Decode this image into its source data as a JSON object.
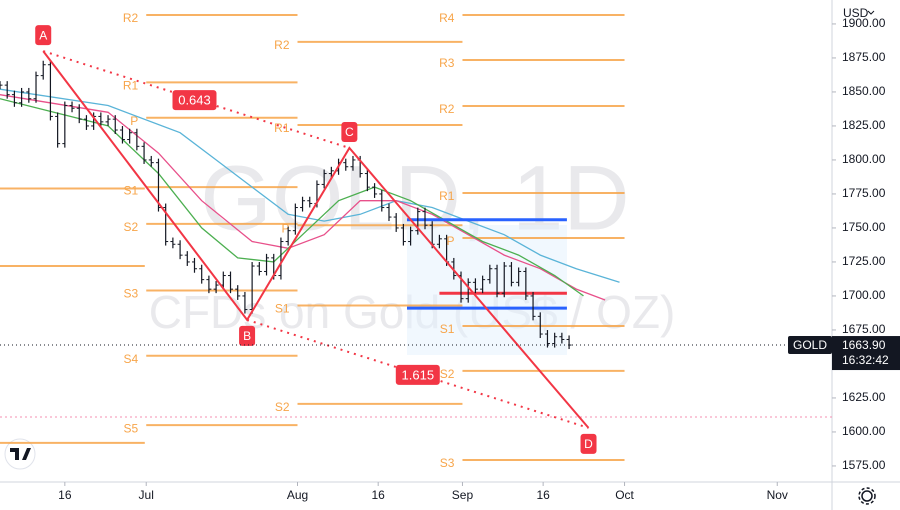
{
  "chart_data": {
    "type": "ohlc",
    "title": "GOLD, 1D",
    "subtitle": "CFDs on Gold (US$ / OZ)",
    "currency": "USD",
    "xlim": [
      0,
      115.5
    ],
    "xticks": [
      {
        "value": 9,
        "label": "16"
      },
      {
        "value": 20.3,
        "label": "Jul"
      },
      {
        "value": 41.3,
        "label": "Aug"
      },
      {
        "value": 52.5,
        "label": "16"
      },
      {
        "value": 64.2,
        "label": "Sep"
      },
      {
        "value": 75.4,
        "label": "16"
      },
      {
        "value": 86.7,
        "label": "Oct"
      },
      {
        "value": 107.9,
        "label": "Nov"
      }
    ],
    "ylim": [
      1563.2,
      1917.6
    ],
    "yticks": [
      {
        "value": 1575,
        "label": "1575.00"
      },
      {
        "value": 1600,
        "label": "1600.00"
      },
      {
        "value": 1625,
        "label": "1625.00"
      },
      {
        "value": 1650,
        "label": "1650.00"
      },
      {
        "value": 1675,
        "label": "1675.00"
      },
      {
        "value": 1700,
        "label": "1700.00"
      },
      {
        "value": 1725,
        "label": "1725.00"
      },
      {
        "value": 1750,
        "label": "1750.00"
      },
      {
        "value": 1775,
        "label": "1775.00"
      },
      {
        "value": 1800,
        "label": "1800.00"
      },
      {
        "value": 1825,
        "label": "1825.00"
      },
      {
        "value": 1850,
        "label": "1850.00"
      },
      {
        "value": 1875,
        "label": "1875.00"
      },
      {
        "value": 1900,
        "label": "1900.00"
      }
    ],
    "x": [
      0,
      1,
      2,
      3,
      4,
      5,
      6,
      7,
      8,
      9,
      10,
      11,
      12,
      13,
      14,
      15,
      16,
      17,
      18,
      19,
      20,
      21,
      22,
      23,
      24,
      25,
      26,
      27,
      28,
      29,
      30,
      31,
      32,
      33,
      34,
      35,
      36,
      37,
      38,
      39,
      40,
      41,
      42,
      43,
      44,
      45,
      46,
      47,
      48,
      49,
      50,
      51,
      52,
      53,
      54,
      55,
      56,
      57,
      58,
      59,
      60,
      61,
      62,
      63,
      64,
      65,
      66,
      67,
      68,
      69,
      70,
      71,
      72,
      73,
      74,
      75,
      76,
      77,
      78,
      79
    ],
    "series": [
      {
        "name": "GOLD",
        "color": "#131722",
        "values": [
          1855,
          1848,
          1842,
          1850,
          1845,
          1862,
          1870,
          1832,
          1812,
          1840,
          1838,
          1830,
          1825,
          1832,
          1828,
          1830,
          1822,
          1815,
          1820,
          1810,
          1800,
          1798,
          1765,
          1740,
          1738,
          1730,
          1725,
          1720,
          1712,
          1705,
          1708,
          1715,
          1705,
          1700,
          1690,
          1722,
          1718,
          1728,
          1715,
          1740,
          1748,
          1765,
          1770,
          1768,
          1782,
          1790,
          1792,
          1798,
          1795,
          1800,
          1790,
          1780,
          1775,
          1765,
          1758,
          1750,
          1740,
          1748,
          1762,
          1752,
          1738,
          1742,
          1725,
          1715,
          1698,
          1710,
          1705,
          1712,
          1720,
          1702,
          1722,
          1710,
          1718,
          1700,
          1685,
          1672,
          1665,
          1670,
          1668,
          1663.9
        ]
      }
    ],
    "moving_averages": [
      {
        "color": "#5ab4d8",
        "x": [
          0,
          15,
          25,
          30,
          35,
          40,
          45,
          50,
          55,
          60,
          65,
          70,
          75,
          80,
          86
        ],
        "values": [
          1852,
          1840,
          1820,
          1800,
          1780,
          1760,
          1755,
          1760,
          1770,
          1765,
          1755,
          1745,
          1730,
          1720,
          1710
        ]
      },
      {
        "color": "#e8508a",
        "x": [
          0,
          15,
          22,
          28,
          35,
          40,
          45,
          50,
          55,
          60,
          65,
          70,
          75,
          80,
          84
        ],
        "values": [
          1848,
          1835,
          1805,
          1770,
          1740,
          1735,
          1745,
          1770,
          1770,
          1760,
          1745,
          1730,
          1720,
          1705,
          1697
        ]
      },
      {
        "color": "#4caf50",
        "x": [
          0,
          15,
          22,
          28,
          33,
          38,
          42,
          47,
          52,
          57,
          62,
          67,
          72,
          77,
          81
        ],
        "values": [
          1845,
          1825,
          1790,
          1750,
          1728,
          1725,
          1745,
          1770,
          1780,
          1770,
          1755,
          1740,
          1730,
          1715,
          1700
        ]
      }
    ],
    "pivot_color": "#f7a54a",
    "pivots": [
      {
        "x": [
          0,
          20.1
        ],
        "levels": [
          {
            "value": 1779
          },
          {
            "value": 1722
          },
          {
            "value": 1592
          }
        ]
      },
      {
        "x": [
          20.3,
          41.3
        ],
        "levels": [
          {
            "label": "R2",
            "value": 1906.6
          },
          {
            "label": "R1",
            "value": 1857
          },
          {
            "label": "P",
            "value": 1831
          },
          {
            "label": "S1",
            "value": 1780
          },
          {
            "label": "S2",
            "value": 1753
          },
          {
            "label": "S3",
            "value": 1704
          },
          {
            "label": "S4",
            "value": 1656
          },
          {
            "label": "S5",
            "value": 1605
          }
        ]
      },
      {
        "x": [
          41.3,
          64.2
        ],
        "levels": [
          {
            "label": "R2",
            "value": 1886.8
          },
          {
            "label": "R1",
            "value": 1825.7
          },
          {
            "label": "P",
            "value": 1752
          },
          {
            "label": "S1",
            "value": 1693
          },
          {
            "label": "S2",
            "value": 1620.6
          }
        ]
      },
      {
        "x": [
          64.2,
          86.7
        ],
        "levels": [
          {
            "label": "R4",
            "value": 1906.6
          },
          {
            "label": "R3",
            "value": 1873.5
          },
          {
            "label": "R2",
            "value": 1839.7
          },
          {
            "label": "R1",
            "value": 1775.7
          },
          {
            "label": "P",
            "value": 1742.6
          },
          {
            "label": "S1",
            "value": 1677.9
          },
          {
            "label": "S2",
            "value": 1644.9
          },
          {
            "label": "S3",
            "value": 1579.4
          }
        ]
      }
    ],
    "profile_levels": [
      {
        "color": "#2962ff",
        "x": [
          56.5,
          78.7
        ],
        "value": 1756
      },
      {
        "color": "#f23645",
        "x": [
          61,
          78.7
        ],
        "value": 1702
      },
      {
        "color": "#2962ff",
        "x": [
          56.5,
          78.7
        ],
        "value": 1691
      }
    ],
    "pattern": {
      "color": "#f23645",
      "points": [
        {
          "label": "A",
          "x": 6,
          "value": 1880
        },
        {
          "label": "B",
          "x": 34.3,
          "value": 1682.4
        },
        {
          "label": "C",
          "x": 48.5,
          "value": 1808.8
        },
        {
          "label": "D",
          "x": 81.7,
          "value": 1603
        }
      ],
      "ratios": [
        {
          "label": "0.643",
          "x": 27,
          "value": 1844
        },
        {
          "label": "1.615",
          "x": 58,
          "value": 1642
        }
      ]
    },
    "alert_level": 1611,
    "last_price": {
      "value": 1663.9,
      "label": "1663.90"
    },
    "countdown": "16:32:42"
  }
}
